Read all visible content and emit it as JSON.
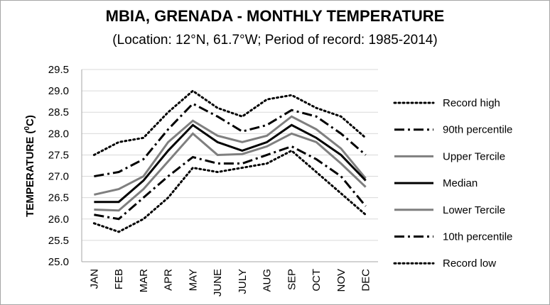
{
  "chart_data": {
    "type": "line",
    "title": "MBIA, GRENADA - MONTHLY TEMPERATURE",
    "subtitle": "(Location: 12°N, 61.7°W; Period of record: 1985-2014)",
    "ylabel_main": "TEMPERATURE (",
    "ylabel_sup": "0",
    "ylabel_tail": "C)",
    "xlabel": "",
    "ylim": [
      25.0,
      29.5
    ],
    "yticks": [
      "25.0",
      "25.5",
      "26.0",
      "26.5",
      "27.0",
      "27.5",
      "28.0",
      "28.5",
      "29.0",
      "29.5"
    ],
    "grid": "horizontal",
    "legend_position": "right",
    "categories": [
      "JAN",
      "FEB",
      "MAR",
      "APR",
      "MAY",
      "JUNE",
      "JULY",
      "AUG",
      "SEP",
      "OCT",
      "NOV",
      "DEC"
    ],
    "series": [
      {
        "name": "Record high",
        "color": "#000000",
        "style": "dotted",
        "values": [
          27.5,
          27.8,
          27.9,
          28.5,
          29.0,
          28.6,
          28.4,
          28.8,
          28.9,
          28.6,
          28.4,
          27.9
        ]
      },
      {
        "name": "90th percentile",
        "color": "#000000",
        "style": "dash-dot",
        "values": [
          27.0,
          27.1,
          27.4,
          28.1,
          28.7,
          28.4,
          28.05,
          28.2,
          28.55,
          28.4,
          28.0,
          27.5
        ]
      },
      {
        "name": "Upper Tercile",
        "color": "#7f7f7f",
        "style": "solid",
        "values": [
          26.57,
          26.7,
          27.0,
          27.8,
          28.3,
          27.95,
          27.8,
          27.95,
          28.4,
          28.1,
          27.65,
          26.95
        ]
      },
      {
        "name": "Median",
        "color": "#000000",
        "style": "solid",
        "values": [
          26.4,
          26.4,
          26.9,
          27.6,
          28.2,
          27.8,
          27.6,
          27.8,
          28.2,
          27.9,
          27.5,
          26.9
        ]
      },
      {
        "name": "Lower Tercile",
        "color": "#7f7f7f",
        "style": "solid",
        "values": [
          26.22,
          26.2,
          26.7,
          27.35,
          28.0,
          27.5,
          27.52,
          27.7,
          28.0,
          27.8,
          27.3,
          26.75
        ]
      },
      {
        "name": "10th percentile",
        "color": "#000000",
        "style": "dash-dot",
        "values": [
          26.1,
          26.0,
          26.5,
          27.0,
          27.45,
          27.3,
          27.3,
          27.5,
          27.7,
          27.4,
          27.0,
          26.3
        ]
      },
      {
        "name": "Record low",
        "color": "#000000",
        "style": "dotted",
        "values": [
          25.9,
          25.7,
          26.0,
          26.5,
          27.2,
          27.1,
          27.2,
          27.3,
          27.6,
          27.1,
          26.6,
          26.1
        ]
      }
    ]
  }
}
